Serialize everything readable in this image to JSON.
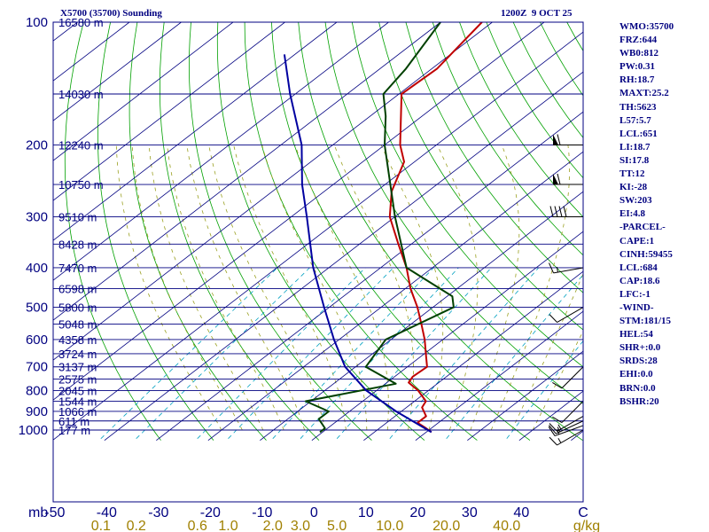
{
  "header": {
    "left_title": "X5700 (35700) Sounding",
    "right_title": "1200Z  9 OCT 25"
  },
  "indices": [
    "WMO:35700",
    "FRZ:644",
    "WB0:812",
    "PW:0.31",
    "RH:18.7",
    "MAXT:25.2",
    "TH:5623",
    "L57:5.7",
    "LCL:651",
    "LI:18.7",
    "SI:17.8",
    "TT:12",
    "KI:-28",
    "SW:203",
    "EI:4.8",
    "-PARCEL-",
    "CAPE:1",
    "CINH:59455",
    "LCL:684",
    "CAP:18.6",
    "LFC:-1",
    "-WIND-",
    "STM:181/15",
    "HEL:54",
    "SHR+:0.0",
    "SRDS:28",
    "EHI:0.0",
    "BRN:0.0",
    "BSHR:20"
  ],
  "colors": {
    "frame": "#000080",
    "isobar": "#000080",
    "isotherm": "#000080",
    "dry_adiabat": "#00a000",
    "moist_adiabat": "#9aa020",
    "mixing_ratio": "#00a0c0",
    "temperature": "#c00000",
    "dewpoint": "#004000",
    "parcel": "#0000a0",
    "wind_barb": "#000000",
    "label": "#a08000"
  },
  "chart_data": {
    "type": "skew-t log-p sounding",
    "title": "X5700 (35700) Sounding",
    "valid_time": "1200Z  9 OCT 25",
    "pressure_axis": {
      "unit": "mb",
      "range": [
        1050,
        100
      ],
      "ticks": [
        100,
        200,
        300,
        400,
        500,
        600,
        700,
        800,
        900,
        1000
      ],
      "tick_labels": [
        "100",
        "200",
        "300",
        "400",
        "500",
        "600",
        "700",
        "800",
        "900",
        "1000"
      ],
      "label": "mb"
    },
    "temperature_axis": {
      "unit": "C",
      "range": [
        -50,
        50
      ],
      "ticks": [
        -50,
        -40,
        -30,
        -20,
        -10,
        0,
        10,
        20,
        30,
        40
      ],
      "tick_labels": [
        "-50",
        "-40",
        "-30",
        "-20",
        "-10",
        "0",
        "10",
        "20",
        "30",
        "40",
        "C"
      ]
    },
    "mixing_ratio_axis": {
      "unit": "g/kg",
      "ticks": [
        0.1,
        0.2,
        0.6,
        1.0,
        2.0,
        3.0,
        5.0,
        10.0,
        20.0,
        40.0
      ],
      "tick_labels": [
        "0.1",
        "0.2",
        "0.6",
        "1.0",
        "2.0",
        "3.0",
        "5.0",
        "10.0",
        "20.0",
        "40.0",
        "g/kg"
      ]
    },
    "height_levels": [
      {
        "p": 100,
        "label": "16580 m"
      },
      {
        "p": 150,
        "label": "14030 m"
      },
      {
        "p": 200,
        "label": "12240 m"
      },
      {
        "p": 250,
        "label": "10750 m"
      },
      {
        "p": 300,
        "label": "9510 m"
      },
      {
        "p": 350,
        "label": "8428 m"
      },
      {
        "p": 400,
        "label": "7470 m"
      },
      {
        "p": 450,
        "label": "6598 m"
      },
      {
        "p": 500,
        "label": "5800 m"
      },
      {
        "p": 550,
        "label": "5048 m"
      },
      {
        "p": 600,
        "label": "4358 m"
      },
      {
        "p": 650,
        "label": "3724 m"
      },
      {
        "p": 700,
        "label": "3137 m"
      },
      {
        "p": 750,
        "label": "2575 m"
      },
      {
        "p": 800,
        "label": "2045 m"
      },
      {
        "p": 850,
        "label": "1544 m"
      },
      {
        "p": 900,
        "label": "1066 m"
      },
      {
        "p": 950,
        "label": "611 m"
      },
      {
        "p": 1000,
        "label": "177 m"
      }
    ],
    "series": [
      {
        "name": "temperature",
        "points": [
          {
            "p": 1012,
            "t": 21.0
          },
          {
            "p": 990,
            "t": 19.0
          },
          {
            "p": 960,
            "t": 16.0
          },
          {
            "p": 925,
            "t": 16.0
          },
          {
            "p": 880,
            "t": 13.0
          },
          {
            "p": 850,
            "t": 12.2
          },
          {
            "p": 800,
            "t": 8.0
          },
          {
            "p": 765,
            "t": 4.2
          },
          {
            "p": 740,
            "t": 3.5
          },
          {
            "p": 700,
            "t": 3.8
          },
          {
            "p": 660,
            "t": 1.0
          },
          {
            "p": 600,
            "t": -3.5
          },
          {
            "p": 550,
            "t": -8.0
          },
          {
            "p": 500,
            "t": -13.0
          },
          {
            "p": 450,
            "t": -19.0
          },
          {
            "p": 400,
            "t": -25.0
          },
          {
            "p": 350,
            "t": -32.5
          },
          {
            "p": 300,
            "t": -41.0
          },
          {
            "p": 260,
            "t": -47.0
          },
          {
            "p": 220,
            "t": -52.0
          },
          {
            "p": 200,
            "t": -57.0
          },
          {
            "p": 150,
            "t": -69.5
          },
          {
            "p": 130,
            "t": -69.0
          },
          {
            "p": 100,
            "t": -72.0
          }
        ]
      },
      {
        "name": "dewpoint",
        "points": [
          {
            "p": 1012,
            "t": -0.5
          },
          {
            "p": 990,
            "t": -0.5
          },
          {
            "p": 940,
            "t": -4.0
          },
          {
            "p": 900,
            "t": -4.0
          },
          {
            "p": 850,
            "t": -11.0
          },
          {
            "p": 770,
            "t": 2.0
          },
          {
            "p": 700,
            "t": -8.0
          },
          {
            "p": 600,
            "t": -11.0
          },
          {
            "p": 500,
            "t": -6.0
          },
          {
            "p": 470,
            "t": -9.0
          },
          {
            "p": 400,
            "t": -25.0
          },
          {
            "p": 300,
            "t": -40.0
          },
          {
            "p": 200,
            "t": -60.0
          },
          {
            "p": 170,
            "t": -67.0
          },
          {
            "p": 150,
            "t": -73.0
          },
          {
            "p": 130,
            "t": -75.0
          },
          {
            "p": 100,
            "t": -80.0
          }
        ]
      },
      {
        "name": "parcel",
        "points": [
          {
            "p": 1012,
            "t": 21.0
          },
          {
            "p": 900,
            "t": 9.0
          },
          {
            "p": 800,
            "t": -2.0
          },
          {
            "p": 700,
            "t": -12.0
          },
          {
            "p": 600,
            "t": -21.0
          },
          {
            "p": 500,
            "t": -31.0
          },
          {
            "p": 400,
            "t": -43.0
          },
          {
            "p": 300,
            "t": -57.0
          },
          {
            "p": 250,
            "t": -66.0
          },
          {
            "p": 200,
            "t": -76.0
          },
          {
            "p": 150,
            "t": -91.0
          },
          {
            "p": 120,
            "t": -102.0
          }
        ]
      }
    ],
    "wind_barbs": [
      {
        "p": 1000,
        "dir": 240,
        "speed": 15
      },
      {
        "p": 975,
        "dir": 250,
        "speed": 15
      },
      {
        "p": 950,
        "dir": 245,
        "speed": 15
      },
      {
        "p": 925,
        "dir": 240,
        "speed": 15
      },
      {
        "p": 850,
        "dir": 225,
        "speed": 10
      },
      {
        "p": 700,
        "dir": 225,
        "speed": 10
      },
      {
        "p": 500,
        "dir": 240,
        "speed": 10
      },
      {
        "p": 400,
        "dir": 260,
        "speed": 15
      },
      {
        "p": 300,
        "dir": 270,
        "speed": 40
      },
      {
        "p": 250,
        "dir": 270,
        "speed": 60
      },
      {
        "p": 200,
        "dir": 270,
        "speed": 60
      }
    ]
  }
}
